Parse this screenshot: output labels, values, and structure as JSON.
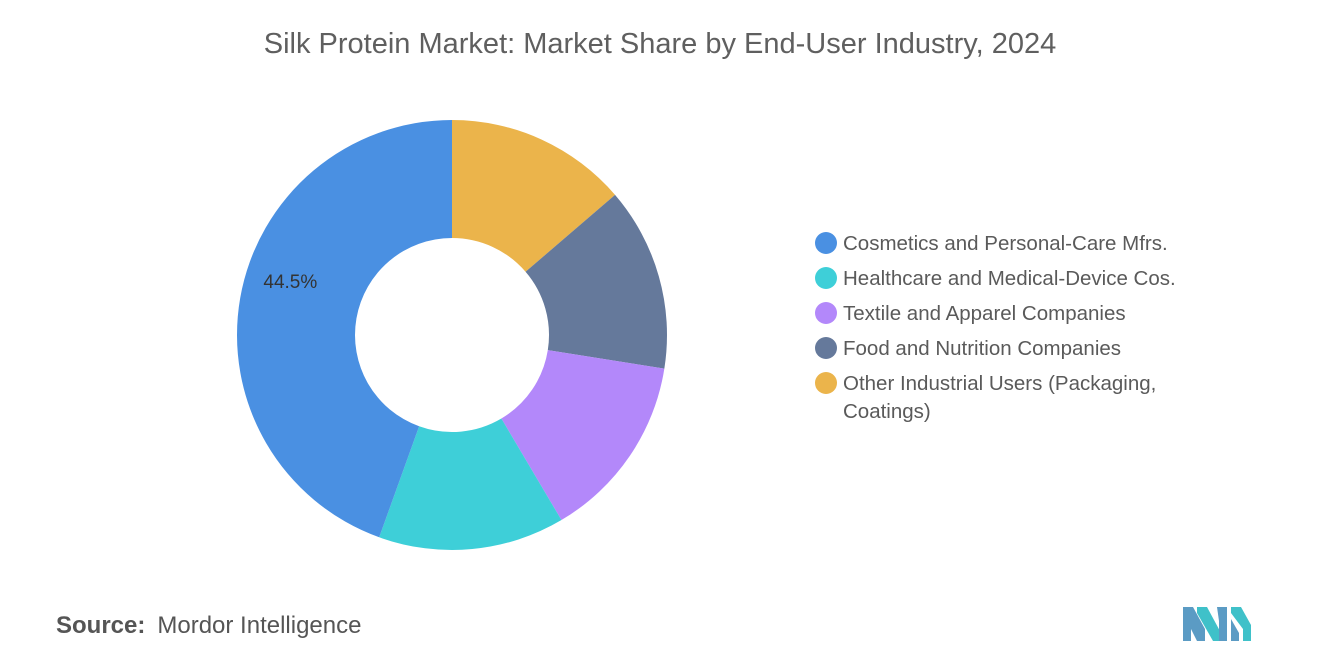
{
  "chart_data": {
    "type": "pie",
    "variant": "donut",
    "title": "Silk Protein Market: Market Share by End-User Industry, 2024",
    "categories": [
      "Cosmetics and Personal-Care Mfrs.",
      "Healthcare and Medical-Device Cos.",
      "Textile and Apparel Companies",
      "Food and Nutrition Companies",
      "Other Industrial Users (Packaging, Coatings)"
    ],
    "values": [
      44.5,
      14.0,
      14.0,
      13.8,
      13.7
    ],
    "data_labels": [
      "44.5%",
      "",
      "",
      "",
      ""
    ],
    "colors": [
      "#4a90e2",
      "#3ecfd8",
      "#b388fa",
      "#65799b",
      "#ebb44b"
    ],
    "legend_position": "right"
  },
  "source": {
    "label": "Source:",
    "value": "Mordor Intelligence"
  },
  "logo": {
    "icon": "mordor-intelligence-logo-icon",
    "colors": [
      "#5b9bc4",
      "#3fc1c9"
    ]
  }
}
